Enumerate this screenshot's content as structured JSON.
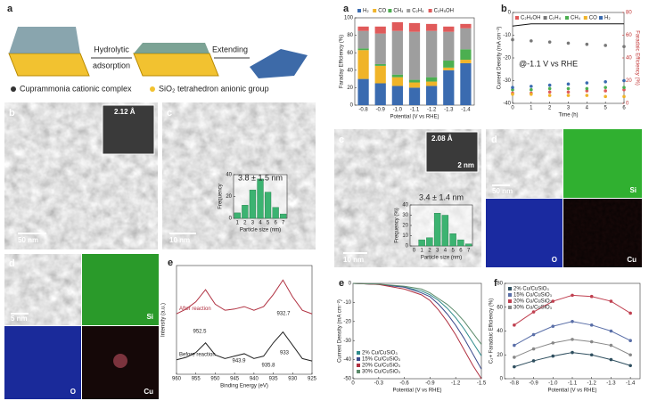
{
  "schematic": {
    "panel": "a",
    "step1": "Hydrolytic",
    "step1b": "adsorption",
    "step2": "Extending",
    "legend": [
      "Cuprammonia cationic complex",
      "SiO₂ tetrahedron anionic group"
    ]
  },
  "tem_b": {
    "panel": "b",
    "lattice": "2.12 Å",
    "scale": "50 nm"
  },
  "tem_c": {
    "panel": "c",
    "scale": "10 nm"
  },
  "map_d": {
    "panel": "d",
    "scale": "5 nm",
    "elements": [
      "Si",
      "O",
      "Cu"
    ]
  },
  "tem_c2": {
    "panel": "c",
    "lattice": "2.08 Å",
    "inset_scale": "2 nm",
    "scale": "10 nm"
  },
  "map_d2": {
    "panel": "d",
    "scale": "50 nm",
    "elements": [
      "Si",
      "O",
      "Cu"
    ]
  },
  "chart_data": [
    {
      "type": "bar",
      "panel": "a",
      "x_label": "Potential (V vs RHE)",
      "y_label": "Faraday Efficiency (%)",
      "categories": [
        "-0.8",
        "-0.9",
        "-1.0",
        "-1.1",
        "-1.2",
        "-1.3",
        "-1.4"
      ],
      "series": [
        {
          "name": "H₂",
          "color": "#3a6bb0",
          "values": [
            30,
            25,
            22,
            20,
            22,
            40,
            48
          ]
        },
        {
          "name": "CO",
          "color": "#f0b429",
          "values": [
            33,
            20,
            10,
            6,
            5,
            3,
            4
          ]
        },
        {
          "name": "CH₄",
          "color": "#4caf50",
          "values": [
            2,
            2,
            3,
            3,
            5,
            8,
            12
          ]
        },
        {
          "name": "C₂H₄",
          "color": "#9e9e9e",
          "values": [
            20,
            35,
            50,
            55,
            53,
            33,
            24
          ]
        },
        {
          "name": "C₂H₅OH",
          "color": "#e05a5a",
          "values": [
            5,
            8,
            10,
            10,
            8,
            6,
            5
          ]
        }
      ],
      "ylim": [
        0,
        100
      ],
      "yticks": [
        0,
        20,
        40,
        60,
        80,
        100
      ],
      "legend": "top"
    },
    {
      "type": "line",
      "panel": "b",
      "x_label": "Time (h)",
      "y_label": "Current Density (mA cm⁻²)",
      "y2_label": "Faradaic Efficiency (%)",
      "annotations": [
        "@-1.1 V vs RHE"
      ],
      "x": [
        0,
        1,
        2,
        3,
        4,
        5,
        6
      ],
      "series": [
        {
          "color": "#111111",
          "style": "line",
          "values": [
            -6,
            -5,
            -5,
            -5,
            -5,
            -5,
            -5
          ]
        },
        {
          "name": "C₂H₅OH",
          "color": "#e05a5a",
          "style": "markers",
          "axis": "y2",
          "values": [
            9,
            9,
            10,
            10,
            11,
            11,
            12
          ]
        },
        {
          "name": "C₂H₄",
          "color": "#777777",
          "style": "markers",
          "axis": "y2",
          "values": [
            56,
            55,
            54,
            53,
            52,
            51,
            50
          ]
        },
        {
          "name": "CH₄",
          "color": "#4caf50",
          "style": "markers",
          "axis": "y2",
          "values": [
            12,
            12,
            13,
            13,
            13,
            14,
            14
          ]
        },
        {
          "name": "CO",
          "color": "#f0b429",
          "style": "markers",
          "axis": "y2",
          "values": [
            8,
            8,
            7,
            7,
            7,
            6,
            6
          ]
        },
        {
          "name": "H₂",
          "color": "#3a6bb0",
          "style": "markers",
          "axis": "y2",
          "values": [
            14,
            15,
            16,
            17,
            18,
            19,
            20
          ]
        }
      ],
      "xlim": [
        0,
        6
      ],
      "xticks": [
        0,
        1,
        2,
        3,
        4,
        5,
        6
      ],
      "ylim": [
        -40,
        0
      ],
      "yticks": [
        -40,
        -30,
        -20,
        -10,
        0
      ],
      "y2lim": [
        0,
        80
      ],
      "y2ticks": [
        0,
        20,
        40,
        60,
        80
      ],
      "legend": "top-inside"
    },
    {
      "type": "bar",
      "x_label": "Particle size (nm)",
      "y_label": "Frequency",
      "annotations": [
        "3.8 ± 1.5 nm"
      ],
      "categories": [
        "1",
        "2",
        "3",
        "4",
        "5",
        "6",
        "7"
      ],
      "values": [
        5,
        12,
        26,
        36,
        24,
        10,
        4
      ],
      "color": "#3cb371",
      "ylim": [
        0,
        40
      ],
      "yticks": [
        0,
        20,
        40
      ]
    },
    {
      "type": "bar",
      "x_label": "Particle size (nm)",
      "y_label": "Frequency (%)",
      "annotations": [
        "3.4 ± 1.4 nm"
      ],
      "categories": [
        "0",
        "1",
        "2",
        "3",
        "4",
        "5",
        "6",
        "7"
      ],
      "values": [
        0,
        6,
        8,
        32,
        30,
        12,
        6,
        2
      ],
      "color": "#3cb371",
      "ylim": [
        0,
        40
      ],
      "yticks": [
        0,
        10,
        20,
        30,
        40
      ]
    },
    {
      "type": "line",
      "panel": "e",
      "x_label": "Binding Energy (eV)",
      "y_label": "Intensity (a.u.)",
      "annotations": [
        "952.5",
        "943.9",
        "935.8",
        "933",
        "932.7"
      ],
      "x": [
        960,
        957.5,
        955,
        952.5,
        950,
        947.5,
        945,
        942.5,
        940,
        937.5,
        935,
        932.5,
        930,
        927.5,
        925
      ],
      "series": [
        {
          "name": "After reaction",
          "color": "#b03040",
          "style": "line",
          "values": [
            5,
            5.4,
            6,
            7,
            5.8,
            5.3,
            5.4,
            5.6,
            5.3,
            5.6,
            6.6,
            7.8,
            6.4,
            5.3,
            5
          ]
        },
        {
          "name": "Before reaction",
          "color": "#222222",
          "style": "line",
          "values": [
            1.2,
            1.4,
            1.8,
            2.6,
            1.6,
            1.3,
            1.5,
            1.7,
            1.3,
            1.5,
            2.6,
            3.5,
            2.4,
            1.3,
            1.1
          ]
        }
      ],
      "xlim": [
        960,
        925
      ],
      "xticks": [
        960,
        955,
        950,
        945,
        940,
        935,
        930,
        925
      ],
      "ylim": [
        0,
        9
      ],
      "legend": "inline"
    },
    {
      "type": "line",
      "panel": "e",
      "x_label": "Potential (V vs RHE)",
      "y_label": "Current Density (mA cm⁻²)",
      "x": [
        0,
        -0.3,
        -0.6,
        -0.8,
        -0.9,
        -1.0,
        -1.1,
        -1.2,
        -1.3,
        -1.4,
        -1.5
      ],
      "series": [
        {
          "name": "2% Cu/CuSiO₃",
          "color": "#2e8b8b",
          "style": "line",
          "values": [
            0,
            -0.5,
            -2,
            -4,
            -6,
            -9,
            -13,
            -18,
            -24,
            -31,
            -38
          ]
        },
        {
          "name": "15% Cu/CuSiO₃",
          "color": "#3a4a8c",
          "style": "line",
          "values": [
            0,
            -0.5,
            -2,
            -5,
            -7,
            -11,
            -16,
            -22,
            -29,
            -37,
            -45
          ]
        },
        {
          "name": "20% Cu/CuSiO₃",
          "color": "#b03040",
          "style": "line",
          "values": [
            0,
            -0.6,
            -3,
            -6,
            -9,
            -14,
            -20,
            -27,
            -35,
            -43,
            -50
          ]
        },
        {
          "name": "30% Cu/CuSiO₃",
          "color": "#5a8a6a",
          "style": "line",
          "values": [
            0,
            -0.4,
            -1.5,
            -3,
            -5,
            -8,
            -11,
            -15,
            -20,
            -26,
            -32
          ]
        }
      ],
      "xlim": [
        0,
        -1.5
      ],
      "xticks": [
        0,
        -0.3,
        -0.6,
        -0.9,
        -1.2,
        -1.5
      ],
      "ylim": [
        -50,
        0
      ],
      "yticks": [
        -50,
        -40,
        -30,
        -20,
        -10,
        0
      ],
      "legend": "lower-left"
    },
    {
      "type": "line",
      "panel": "f",
      "x_label": "Potential (V vs RHE)",
      "y_label": "C₂+ Faradaic Efficiency (%)",
      "x": [
        -0.8,
        -0.9,
        -1.0,
        -1.1,
        -1.2,
        -1.3,
        -1.4
      ],
      "series": [
        {
          "name": "2% Cu/CuSiO₃",
          "color": "#2f4f5f",
          "style": "line+markers",
          "values": [
            10,
            15,
            19,
            22,
            20,
            16,
            11
          ]
        },
        {
          "name": "15% Cu/CuSiO₃",
          "color": "#5a6fa8",
          "style": "line+markers",
          "values": [
            28,
            37,
            44,
            48,
            45,
            40,
            32
          ]
        },
        {
          "name": "20% Cu/CuSiO₃",
          "color": "#c04050",
          "style": "line+markers",
          "values": [
            45,
            56,
            65,
            70,
            69,
            65,
            55
          ]
        },
        {
          "name": "30% Cu/CuSiO₃",
          "color": "#888888",
          "style": "line+markers",
          "values": [
            18,
            25,
            30,
            33,
            31,
            28,
            20
          ]
        }
      ],
      "xlim": [
        -0.75,
        -1.45
      ],
      "xticks": [
        -0.8,
        -0.9,
        {
          "value": -1,
          "label": "-1.0"
        },
        -1.1,
        -1.2,
        -1.3,
        -1.4
      ],
      "ylim": [
        0,
        80
      ],
      "yticks": [
        0,
        20,
        40,
        60,
        80
      ],
      "legend": "upper-left"
    }
  ]
}
